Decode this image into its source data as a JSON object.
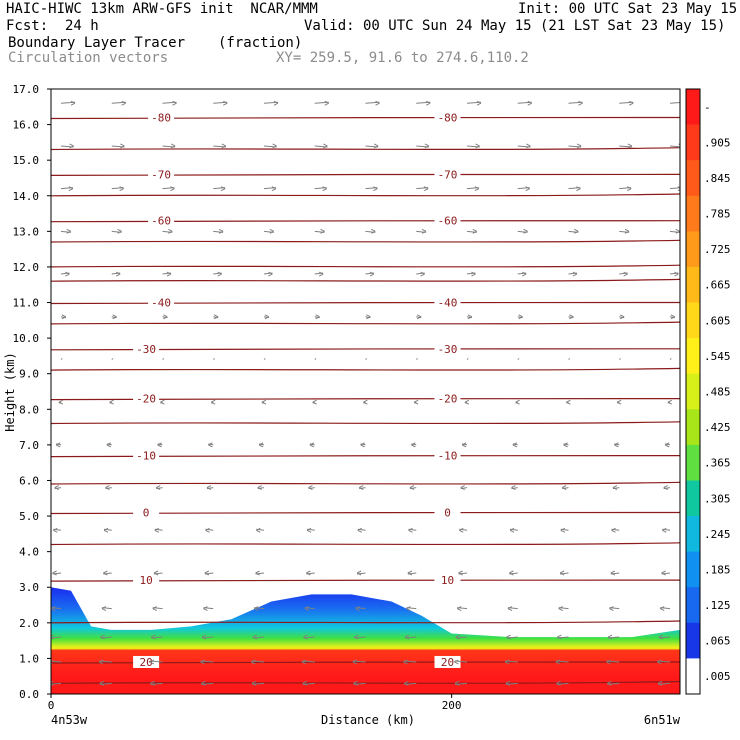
{
  "header": {
    "model_line": "HAIC-HIWC 13km ARW-GFS init  NCAR/MMM",
    "init_line": "Init: 00 UTC Sat 23 May 15",
    "fcst_label": "Fcst:",
    "fcst_value": "24 h",
    "valid_line": "Valid: 00 UTC Sun 24 May 15 (21 LST Sat 23 May 15)",
    "field_name": "Boundary Layer Tracer",
    "field_units": "(fraction)",
    "overlay_name": "Circulation vectors",
    "xy_range": "XY= 259.5, 91.6 to 274.6,110.2"
  },
  "colors": {
    "contour": "#8b1a1a",
    "vector": "#808080",
    "text_gray": "#8c8c8c"
  },
  "chart_data": {
    "type": "heatmap",
    "title": "Boundary Layer Tracer",
    "xlabel": "Distance (km)",
    "ylabel": "Height (km)",
    "xlim": [
      0,
      314
    ],
    "ylim": [
      0,
      17
    ],
    "x_ticks": [
      0,
      200
    ],
    "x_tick_labels": [
      "0",
      "200"
    ],
    "x_end_labels": {
      "left": "4n53w",
      "right": "6n51w"
    },
    "y_ticks": [
      0,
      1,
      2,
      3,
      4,
      5,
      6,
      7,
      8,
      9,
      10,
      11,
      12,
      13,
      14,
      15,
      16,
      17
    ],
    "y_tick_labels": [
      "0.0",
      "1.0",
      "2.0",
      "3.0",
      "4.0",
      "5.0",
      "6.0",
      "7.0",
      "8.0",
      "9.0",
      "10.0",
      "11.0",
      "12.0",
      "13.0",
      "14.0",
      "15.0",
      "16.0",
      "17.0"
    ],
    "colorbar": {
      "labels": [
        "-",
        ".905",
        ".845",
        ".785",
        ".725",
        ".665",
        ".605",
        ".545",
        ".485",
        ".425",
        ".365",
        ".305",
        ".245",
        ".185",
        ".125",
        ".065",
        ".005"
      ],
      "colors": [
        "#ff1a1a",
        "#ff3a1a",
        "#ff5a1a",
        "#ff7a1a",
        "#ff9a1a",
        "#ffba1a",
        "#ffd81a",
        "#fff01a",
        "#d8f01a",
        "#a8e61a",
        "#60e040",
        "#10c8a0",
        "#10b8e0",
        "#1090f0",
        "#1868f0",
        "#1838e8",
        "#ffffff"
      ]
    },
    "tracer_top_km": [
      [
        0,
        3.0
      ],
      [
        10,
        2.9
      ],
      [
        20,
        1.9
      ],
      [
        30,
        1.8
      ],
      [
        50,
        1.8
      ],
      [
        70,
        1.9
      ],
      [
        90,
        2.1
      ],
      [
        110,
        2.6
      ],
      [
        130,
        2.8
      ],
      [
        150,
        2.8
      ],
      [
        170,
        2.6
      ],
      [
        185,
        2.2
      ],
      [
        200,
        1.7
      ],
      [
        230,
        1.6
      ],
      [
        260,
        1.6
      ],
      [
        290,
        1.6
      ],
      [
        314,
        1.8
      ]
    ],
    "contours": [
      {
        "height_km": 16.2,
        "label": "-80"
      },
      {
        "height_km": 14.6,
        "label": "-70"
      },
      {
        "height_km": 13.3,
        "label": "-60"
      },
      {
        "height_km": 11.0,
        "label": "-40"
      },
      {
        "height_km": 9.7,
        "label": "-30"
      },
      {
        "height_km": 8.3,
        "label": "-20"
      },
      {
        "height_km": 6.7,
        "label": "-10"
      },
      {
        "height_km": 5.1,
        "label": "0"
      },
      {
        "height_km": 3.2,
        "label": "10"
      },
      {
        "height_km": 0.9,
        "label": "20"
      }
    ],
    "extra_lines_km": [
      15.3,
      14.0,
      12.7,
      12.0,
      11.6,
      10.4,
      9.1,
      7.6,
      5.9,
      4.2,
      2.0,
      0.3
    ],
    "vector_rows": [
      {
        "height_km": 16.6,
        "u": 1.0
      },
      {
        "height_km": 15.4,
        "u": 0.9
      },
      {
        "height_km": 14.2,
        "u": 0.85
      },
      {
        "height_km": 13.0,
        "u": 0.7
      },
      {
        "height_km": 11.8,
        "u": 0.6
      },
      {
        "height_km": 10.6,
        "u": 0.35
      },
      {
        "height_km": 9.4,
        "u": 0.1
      },
      {
        "height_km": 8.2,
        "u": -0.15
      },
      {
        "height_km": 7.0,
        "u": -0.35
      },
      {
        "height_km": 5.8,
        "u": -0.45
      },
      {
        "height_km": 4.6,
        "u": -0.55
      },
      {
        "height_km": 3.4,
        "u": -0.6
      },
      {
        "height_km": 2.4,
        "u": -0.7
      },
      {
        "height_km": 1.6,
        "u": -0.8
      },
      {
        "height_km": 0.9,
        "u": -0.9
      },
      {
        "height_km": 0.3,
        "u": -0.85
      }
    ]
  }
}
